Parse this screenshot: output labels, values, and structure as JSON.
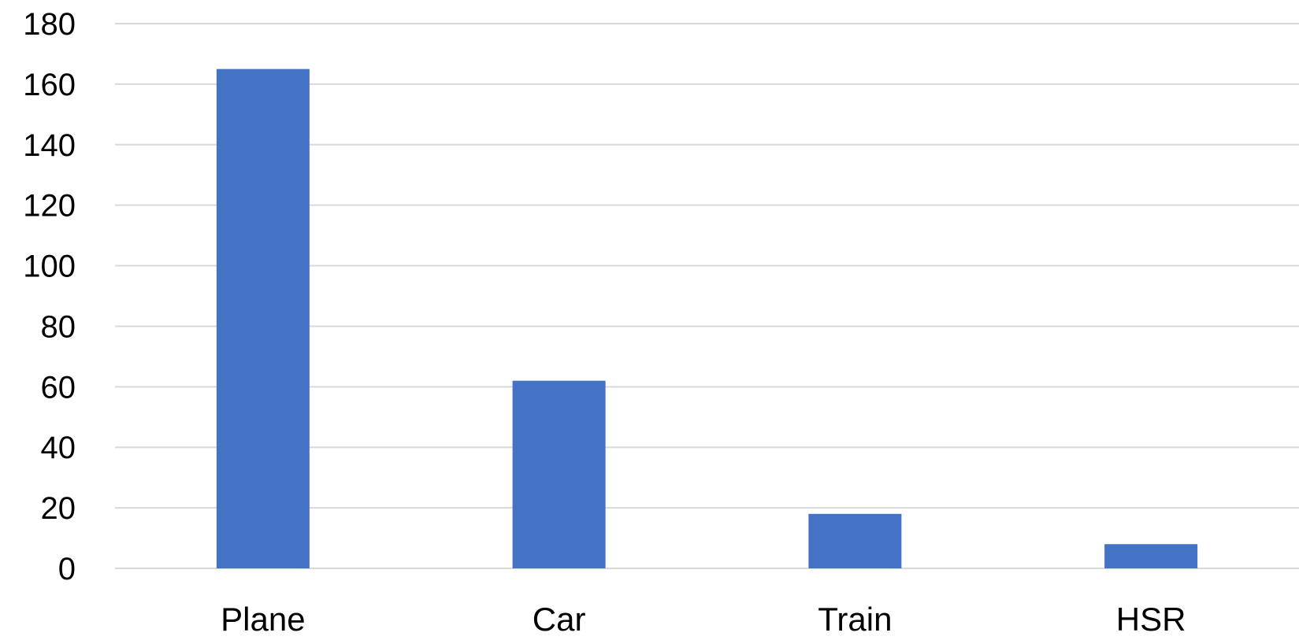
{
  "chart_data": {
    "type": "bar",
    "title": "",
    "xlabel": "",
    "ylabel": "",
    "categories": [
      "Plane",
      "Car",
      "Train",
      "HSR"
    ],
    "values": [
      165,
      62,
      18,
      8
    ],
    "ylim": [
      0,
      180
    ],
    "yticks": [
      0,
      20,
      40,
      60,
      80,
      100,
      120,
      140,
      160,
      180
    ],
    "grid": true,
    "legend": "none",
    "bar_color": "#4472C4",
    "grid_color": "#D9D9D9"
  }
}
